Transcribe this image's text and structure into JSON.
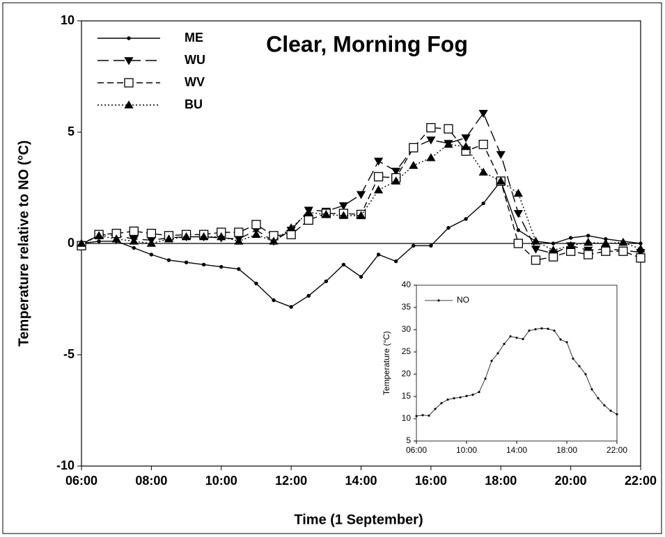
{
  "chart_data": [
    {
      "type": "line",
      "title": "Clear, Morning Fog",
      "xlabel": "Time (1 September)",
      "ylabel": "Temperature relative to NO (°C)",
      "x": [
        6,
        6.5,
        7,
        7.5,
        8,
        8.5,
        9,
        9.5,
        10,
        10.5,
        11,
        11.5,
        12,
        12.5,
        13,
        13.5,
        14,
        14.5,
        15,
        15.5,
        16,
        16.5,
        17,
        17.5,
        18,
        18.5,
        19,
        19.5,
        20,
        20.5,
        21,
        21.5,
        22
      ],
      "xlim": [
        6,
        22
      ],
      "xticks": [
        {
          "value": 6,
          "label": "06:00"
        },
        {
          "value": 8,
          "label": "08:00"
        },
        {
          "value": 10,
          "label": "10:00"
        },
        {
          "value": 12,
          "label": "12:00"
        },
        {
          "value": 14,
          "label": "14:00"
        },
        {
          "value": 16,
          "label": "16:00"
        },
        {
          "value": 18,
          "label": "18:00"
        },
        {
          "value": 20,
          "label": "20:00"
        },
        {
          "value": 22,
          "label": "22:00"
        }
      ],
      "ylim": [
        -10,
        10
      ],
      "yticks": [
        -10,
        -5,
        0,
        5,
        10
      ],
      "reference_line": 0,
      "legend": "upper left",
      "series": [
        {
          "name": "ME",
          "color": "#000000",
          "marker": "dot",
          "dash": "none",
          "values": [
            0.0,
            0.1,
            0.1,
            -0.2,
            -0.5,
            -0.75,
            -0.85,
            -0.95,
            -1.05,
            -1.15,
            -1.8,
            -2.55,
            -2.85,
            -2.35,
            -1.7,
            -0.95,
            -1.5,
            -0.5,
            -0.8,
            -0.1,
            -0.1,
            0.7,
            1.1,
            1.8,
            2.8,
            0.6,
            0.1,
            0.0,
            0.25,
            0.35,
            0.2,
            0.1,
            0.0
          ]
        },
        {
          "name": "WU",
          "color": "#000000",
          "marker": "triangle-down",
          "dash": "16,7",
          "values": [
            -0.05,
            0.4,
            0.35,
            0.2,
            0.15,
            0.25,
            0.3,
            0.3,
            0.25,
            0.2,
            0.6,
            0.1,
            0.6,
            1.5,
            1.45,
            1.7,
            2.2,
            3.7,
            3.25,
            4.3,
            4.65,
            4.5,
            4.75,
            5.85,
            4.0,
            1.35,
            -0.25,
            -0.45,
            -0.1,
            -0.3,
            -0.25,
            -0.3,
            -0.4
          ]
        },
        {
          "name": "WV",
          "color": "#000000",
          "marker": "square-open",
          "dash": "9,5",
          "values": [
            -0.1,
            0.4,
            0.45,
            0.55,
            0.45,
            0.35,
            0.4,
            0.4,
            0.5,
            0.5,
            0.85,
            0.35,
            0.4,
            1.05,
            1.35,
            1.35,
            1.3,
            3.0,
            2.95,
            4.3,
            5.2,
            5.15,
            4.15,
            4.45,
            2.8,
            0.0,
            -0.75,
            -0.6,
            -0.35,
            -0.5,
            -0.35,
            -0.35,
            -0.65
          ]
        },
        {
          "name": "BU",
          "color": "#000000",
          "marker": "triangle-up",
          "dash": "2,3",
          "values": [
            0.0,
            0.35,
            0.2,
            0.1,
            0.0,
            0.2,
            0.3,
            0.3,
            0.3,
            0.1,
            0.4,
            0.1,
            0.7,
            1.4,
            1.3,
            1.25,
            1.25,
            2.4,
            2.8,
            3.5,
            3.85,
            4.45,
            4.35,
            3.2,
            2.8,
            2.25,
            0.1,
            -0.3,
            -0.1,
            0.05,
            0.0,
            0.05,
            -0.25
          ]
        }
      ]
    },
    {
      "type": "line",
      "ylabel": "Temperature (°C)",
      "x": [
        6,
        6.5,
        7,
        7.5,
        8,
        8.5,
        9,
        9.5,
        10,
        10.5,
        11,
        11.5,
        12,
        12.5,
        13,
        13.5,
        14,
        14.5,
        15,
        15.5,
        16,
        16.5,
        17,
        17.5,
        18,
        18.5,
        19,
        19.5,
        20,
        20.5,
        21,
        21.5,
        22
      ],
      "xlim": [
        6,
        22
      ],
      "xticks": [
        {
          "value": 6,
          "label": "06:00"
        },
        {
          "value": 10,
          "label": "10:00"
        },
        {
          "value": 14,
          "label": "14:00"
        },
        {
          "value": 18,
          "label": "18:00"
        },
        {
          "value": 22,
          "label": "22:00"
        }
      ],
      "ylim": [
        5,
        40
      ],
      "yticks": [
        5,
        10,
        15,
        20,
        25,
        30,
        35,
        40
      ],
      "legend": "upper left",
      "series": [
        {
          "name": "NO",
          "color": "#000000",
          "marker": "dot",
          "dash": "none",
          "values": [
            10.6,
            10.8,
            10.7,
            12.2,
            13.5,
            14.3,
            14.6,
            14.8,
            15.1,
            15.4,
            16.0,
            19.0,
            23.0,
            24.7,
            26.8,
            28.5,
            28.2,
            27.9,
            29.8,
            30.1,
            30.3,
            30.2,
            29.8,
            27.8,
            27.2,
            23.5,
            21.8,
            20.0,
            16.6,
            14.6,
            13.0,
            11.8,
            11.0
          ]
        }
      ]
    }
  ]
}
